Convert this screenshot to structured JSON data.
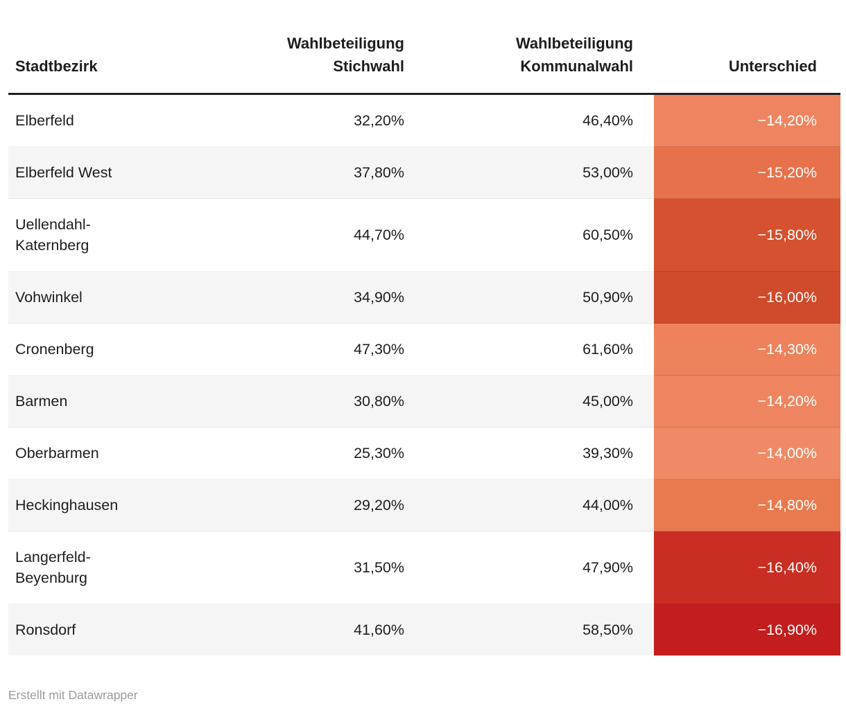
{
  "table": {
    "columns": [
      {
        "label": "Stadtbezirk"
      },
      {
        "label": "Wahlbeteiligung\nStichwahl"
      },
      {
        "label": "Wahlbeteiligung\nKommunalwahl"
      },
      {
        "label": "Unterschied"
      }
    ],
    "rows": [
      {
        "name": "Elberfeld",
        "stichwahl": "32,20%",
        "kommunalwahl": "46,40%",
        "unterschied": "−14,20%",
        "color": "#ee8560"
      },
      {
        "name": "Elberfeld West",
        "stichwahl": "37,80%",
        "kommunalwahl": "53,00%",
        "unterschied": "−15,20%",
        "color": "#e7714a"
      },
      {
        "name": "Uellendahl-\nKaternberg",
        "stichwahl": "44,70%",
        "kommunalwahl": "60,50%",
        "unterschied": "−15,80%",
        "color": "#d5512f"
      },
      {
        "name": "Vohwinkel",
        "stichwahl": "34,90%",
        "kommunalwahl": "50,90%",
        "unterschied": "−16,00%",
        "color": "#d04a2c"
      },
      {
        "name": "Cronenberg",
        "stichwahl": "47,30%",
        "kommunalwahl": "61,60%",
        "unterschied": "−14,30%",
        "color": "#ed825c"
      },
      {
        "name": "Barmen",
        "stichwahl": "30,80%",
        "kommunalwahl": "45,00%",
        "unterschied": "−14,20%",
        "color": "#ee8560"
      },
      {
        "name": "Oberbarmen",
        "stichwahl": "25,30%",
        "kommunalwahl": "39,30%",
        "unterschied": "−14,00%",
        "color": "#f08a66"
      },
      {
        "name": "Heckinghausen",
        "stichwahl": "29,20%",
        "kommunalwahl": "44,00%",
        "unterschied": "−14,80%",
        "color": "#e97a50"
      },
      {
        "name": "Langerfeld-\nBeyenburg",
        "stichwahl": "31,50%",
        "kommunalwahl": "47,90%",
        "unterschied": "−16,40%",
        "color": "#c92d23"
      },
      {
        "name": "Ronsdorf",
        "stichwahl": "41,60%",
        "kommunalwahl": "58,50%",
        "unterschied": "−16,90%",
        "color": "#c31d1e"
      }
    ]
  },
  "footer": {
    "attribution": "Erstellt mit Datawrapper"
  },
  "colors": {
    "header_border": "#202020",
    "zebra_stripe": "#f5f5f5",
    "body_text": "#1d1d1d",
    "diff_text": "#ffffff",
    "footer_text": "#9b9b9b"
  },
  "chart_data": {
    "type": "table",
    "columns": [
      "Stadtbezirk",
      "Wahlbeteiligung Stichwahl",
      "Wahlbeteiligung Kommunalwahl",
      "Unterschied"
    ],
    "rows": [
      [
        "Elberfeld",
        32.2,
        46.4,
        -14.2
      ],
      [
        "Elberfeld West",
        37.8,
        53.0,
        -15.2
      ],
      [
        "Uellendahl-Katernberg",
        44.7,
        60.5,
        -15.8
      ],
      [
        "Vohwinkel",
        34.9,
        50.9,
        -16.0
      ],
      [
        "Cronenberg",
        47.3,
        61.6,
        -14.3
      ],
      [
        "Barmen",
        30.8,
        45.0,
        -14.2
      ],
      [
        "Oberbarmen",
        25.3,
        39.3,
        -14.0
      ],
      [
        "Heckinghausen",
        29.2,
        44.0,
        -14.8
      ],
      [
        "Langerfeld-Beyenburg",
        31.5,
        47.9,
        -16.4
      ],
      [
        "Ronsdorf",
        41.6,
        58.5,
        -16.9
      ]
    ],
    "units": "percent",
    "heatmap": {
      "column": "Unterschied",
      "min": -16.9,
      "max": -14.0,
      "light_color": "#f08a66",
      "dark_color": "#c31d1e"
    },
    "attribution": "Erstellt mit Datawrapper"
  }
}
